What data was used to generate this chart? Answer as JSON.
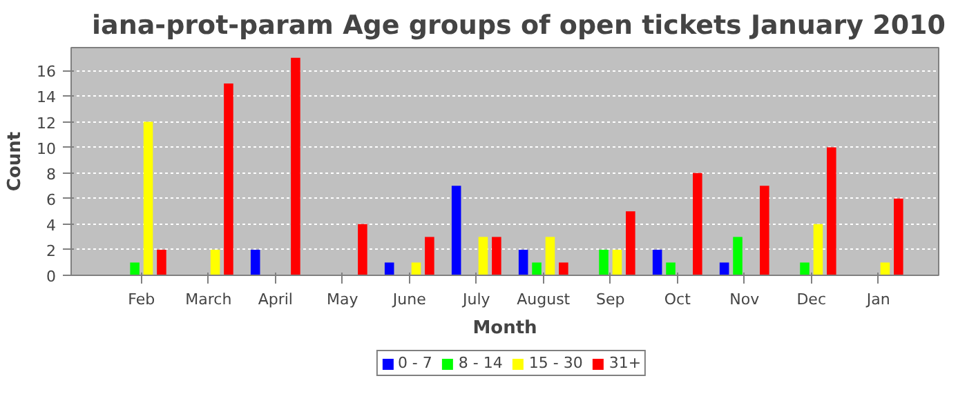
{
  "chart_data": {
    "type": "bar",
    "title": "iana-prot-param Age groups of open tickets January 2010",
    "xlabel": "Month",
    "ylabel": "Count",
    "categories": [
      "Feb",
      "March",
      "April",
      "May",
      "June",
      "July",
      "August",
      "Sep",
      "Oct",
      "Nov",
      "Dec",
      "Jan"
    ],
    "series": [
      {
        "name": "0 - 7",
        "color": "#0000ff",
        "values": [
          0,
          0,
          2,
          0,
          1,
          7,
          2,
          0,
          2,
          1,
          0,
          0
        ]
      },
      {
        "name": "8 - 14",
        "color": "#00ff00",
        "values": [
          1,
          0,
          0,
          0,
          0,
          0,
          1,
          2,
          1,
          3,
          1,
          0
        ]
      },
      {
        "name": "15 - 30",
        "color": "#ffff00",
        "values": [
          12,
          2,
          0,
          0,
          1,
          3,
          3,
          2,
          0,
          0,
          4,
          1
        ]
      },
      {
        "name": "31+",
        "color": "#ff0000",
        "values": [
          2,
          15,
          17,
          4,
          3,
          3,
          1,
          5,
          8,
          7,
          10,
          6
        ]
      }
    ],
    "ylim": [
      0,
      17.8
    ],
    "yticks": [
      0,
      2,
      4,
      6,
      8,
      10,
      12,
      14,
      16
    ],
    "grid": "y",
    "legend": "bottom"
  }
}
